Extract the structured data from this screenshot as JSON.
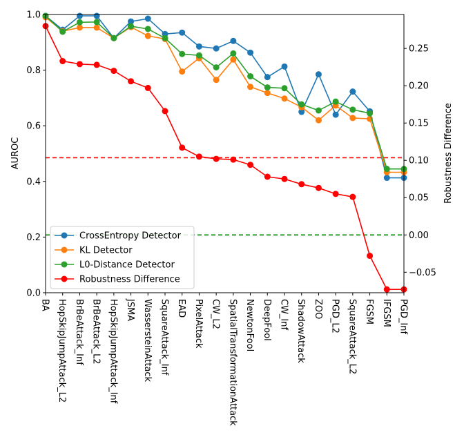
{
  "chart_data": {
    "type": "line",
    "title": "",
    "xlabel": "",
    "ylabel": "AUROC",
    "y2label": "Robustness Difference",
    "ylim": [
      0,
      1
    ],
    "y2lim": [
      -0.0775,
      0.2955
    ],
    "yticks": [
      0.0,
      0.2,
      0.4,
      0.6,
      0.8,
      1.0
    ],
    "yticklabels": [
      "0.0",
      "0.2",
      "0.4",
      "0.6",
      "0.8",
      "1.0"
    ],
    "y2ticks": [
      -0.05,
      0.0,
      0.05,
      0.1,
      0.15,
      0.2,
      0.25
    ],
    "y2ticklabels": [
      "−0.05",
      "0.00",
      "0.05",
      "0.10",
      "0.15",
      "0.20",
      "0.25"
    ],
    "categories": [
      "BA",
      "HopSkipJumpAttack_L2",
      "BrBeAttack_Inf",
      "BrBeAttack_L2",
      "HopSkipJumpAttack_Inf",
      "JSMA",
      "WassersteinAttack",
      "SquareAttack_Inf",
      "EAD",
      "PixelAttack",
      "CW_L2",
      "SpatialTransformationAttack",
      "NewtonFool",
      "DeepFool",
      "CW_Inf",
      "ShadowAttack",
      "ZOO",
      "PGD_L2",
      "SquareAttack_L2",
      "FGSM",
      "IFGSM",
      "PGD_Inf"
    ],
    "series": [
      {
        "name": "CrossEntropy Detector",
        "color": "#1f77b4",
        "axis": "left",
        "values": [
          0.995,
          0.945,
          0.995,
          0.995,
          0.915,
          0.975,
          0.985,
          0.93,
          0.935,
          0.885,
          0.878,
          0.905,
          0.863,
          0.775,
          0.813,
          0.65,
          0.785,
          0.64,
          0.723,
          0.652,
          0.413,
          0.413
        ]
      },
      {
        "name": "KL Detector",
        "color": "#ff7f0e",
        "axis": "left",
        "values": [
          0.99,
          0.94,
          0.953,
          0.953,
          0.915,
          0.955,
          0.923,
          0.912,
          0.795,
          0.843,
          0.765,
          0.838,
          0.74,
          0.718,
          0.698,
          0.667,
          0.62,
          0.673,
          0.628,
          0.625,
          0.433,
          0.433
        ]
      },
      {
        "name": "L0-Distance Detector",
        "color": "#2ca02c",
        "axis": "left",
        "values": [
          0.995,
          0.938,
          0.972,
          0.973,
          0.915,
          0.958,
          0.948,
          0.915,
          0.858,
          0.853,
          0.81,
          0.86,
          0.778,
          0.738,
          0.735,
          0.677,
          0.655,
          0.687,
          0.658,
          0.645,
          0.445,
          0.445
        ]
      },
      {
        "name": "Robustness Difference",
        "color": "#ff0000",
        "axis": "right",
        "values": [
          0.28,
          0.233,
          0.229,
          0.228,
          0.22,
          0.206,
          0.197,
          0.166,
          0.117,
          0.105,
          0.102,
          0.101,
          0.094,
          0.078,
          0.075,
          0.068,
          0.063,
          0.055,
          0.051,
          -0.028,
          -0.073,
          -0.073
        ]
      }
    ],
    "hlines": [
      {
        "axis": "right",
        "value": 0.1035,
        "color": "#ff0000",
        "style": "dashed"
      },
      {
        "axis": "right",
        "value": 0.0,
        "color": "#008000",
        "style": "dashed"
      }
    ],
    "legend_position": "lower-left",
    "grid": false
  }
}
